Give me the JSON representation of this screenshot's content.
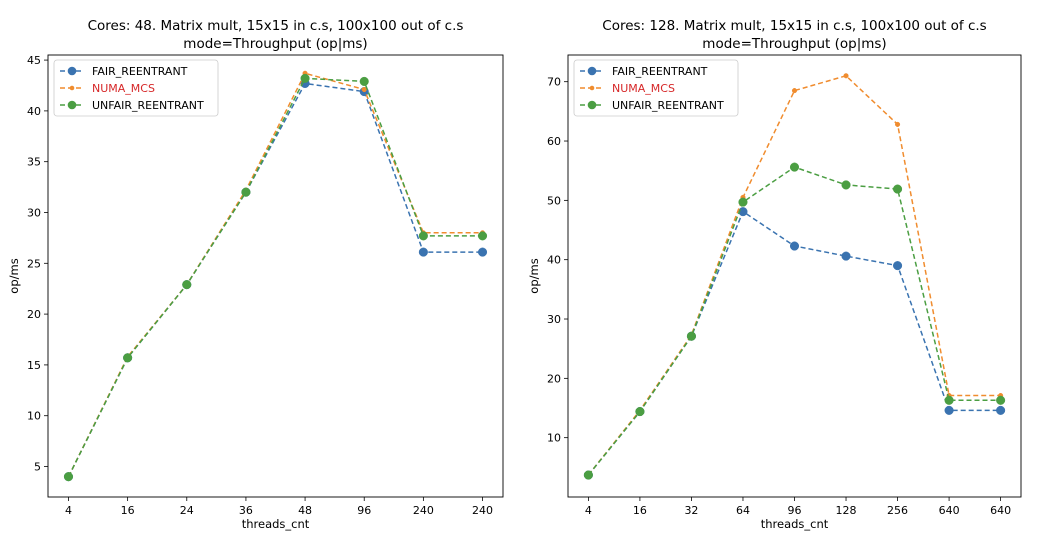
{
  "chart_data": [
    {
      "type": "line",
      "title": "Cores: 48. Matrix mult, 15x15 in c.s, 100x100 out of c.s",
      "subtitle": "mode=Throughput (op|ms)",
      "xlabel": "threads_cnt",
      "ylabel": "op/ms",
      "categories": [
        "4",
        "16",
        "24",
        "36",
        "48",
        "96",
        "240",
        "240"
      ],
      "ylim": [
        2,
        45.5
      ],
      "yticks": [
        5,
        10,
        15,
        20,
        25,
        30,
        35,
        40,
        45
      ],
      "grid": false,
      "legend": "top-left",
      "series": [
        {
          "name": "FAIR_REENTRANT",
          "color": "#3a73b0",
          "marker": "circle",
          "values": [
            4.0,
            15.7,
            22.9,
            32.0,
            42.7,
            41.9,
            26.1,
            26.1
          ]
        },
        {
          "name": "NUMA_MCS",
          "color": "#f08c2e",
          "marker": "small-circle",
          "label_color": "#d62728",
          "values": [
            4.0,
            15.8,
            22.9,
            32.2,
            43.7,
            42.1,
            28.0,
            28.0
          ]
        },
        {
          "name": "UNFAIR_REENTRANT",
          "color": "#4b9e42",
          "marker": "circle",
          "values": [
            4.0,
            15.7,
            22.9,
            32.0,
            43.2,
            42.9,
            27.7,
            27.7
          ]
        }
      ]
    },
    {
      "type": "line",
      "title": "Cores: 128. Matrix mult, 15x15 in c.s, 100x100 out of c.s",
      "subtitle": "mode=Throughput (op|ms)",
      "xlabel": "threads_cnt",
      "ylabel": "op/ms",
      "categories": [
        "4",
        "16",
        "32",
        "64",
        "96",
        "128",
        "256",
        "640",
        "640"
      ],
      "ylim": [
        0,
        74.5
      ],
      "yticks": [
        10,
        20,
        30,
        40,
        50,
        60,
        70
      ],
      "grid": false,
      "legend": "top-left",
      "series": [
        {
          "name": "FAIR_REENTRANT",
          "color": "#3a73b0",
          "marker": "circle",
          "values": [
            3.7,
            14.4,
            27.1,
            48.1,
            42.3,
            40.6,
            39.0,
            14.6,
            14.6
          ]
        },
        {
          "name": "NUMA_MCS",
          "color": "#f08c2e",
          "marker": "small-circle",
          "label_color": "#d62728",
          "values": [
            3.7,
            14.6,
            27.3,
            50.5,
            68.5,
            71.0,
            62.8,
            17.1,
            17.1
          ]
        },
        {
          "name": "UNFAIR_REENTRANT",
          "color": "#4b9e42",
          "marker": "circle",
          "values": [
            3.7,
            14.4,
            27.1,
            49.7,
            55.6,
            52.6,
            51.9,
            16.3,
            16.3
          ]
        }
      ]
    }
  ]
}
